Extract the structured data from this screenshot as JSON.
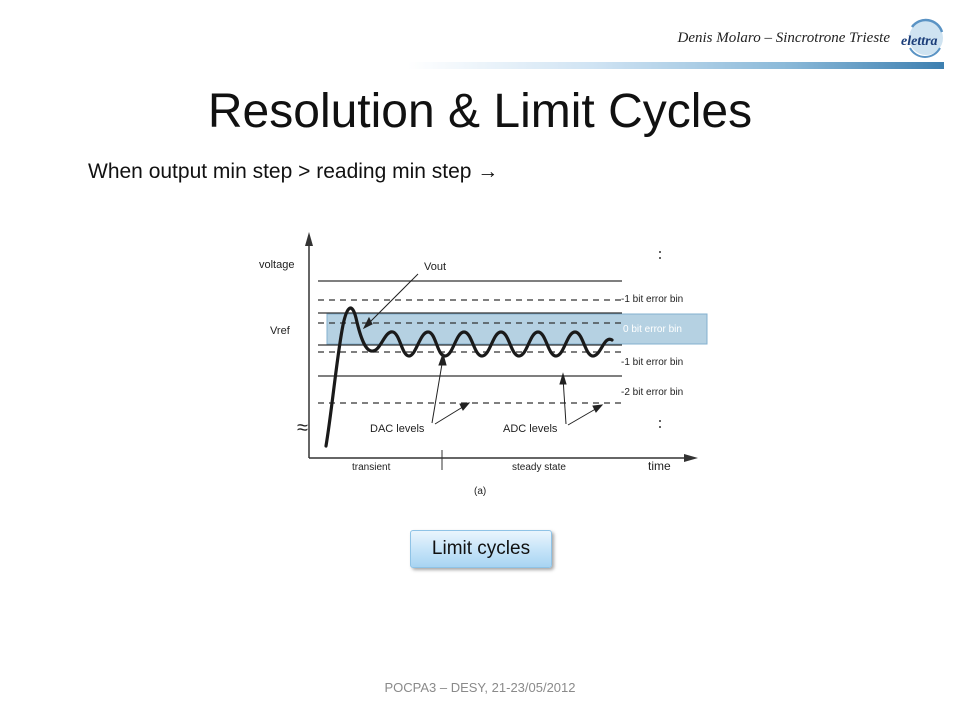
{
  "header": {
    "author": "Denis Molaro – Sincrotrone Trieste",
    "logo_text": "elettra"
  },
  "title": "Resolution & Limit Cycles",
  "subtitle": "When output min step > reading min step →",
  "diagram": {
    "y_axis_label": "voltage",
    "vref_label": "Vref",
    "vout_label": "Vout",
    "bins": {
      "plus1": "-1 bit error bin",
      "zero": "0 bit error bin",
      "minus1": "-1 bit error bin",
      "minus2": "-2 bit error bin"
    },
    "dac_label": "DAC levels",
    "adc_label": "ADC levels",
    "x_axis_label": "time",
    "transient_label": "transient",
    "steady_label": "steady state",
    "caption": "(a)",
    "highlight_color": "#7fb3d5"
  },
  "callout": "Limit cycles",
  "footer": "POCPA3 – DESY, 21-23/05/2012"
}
